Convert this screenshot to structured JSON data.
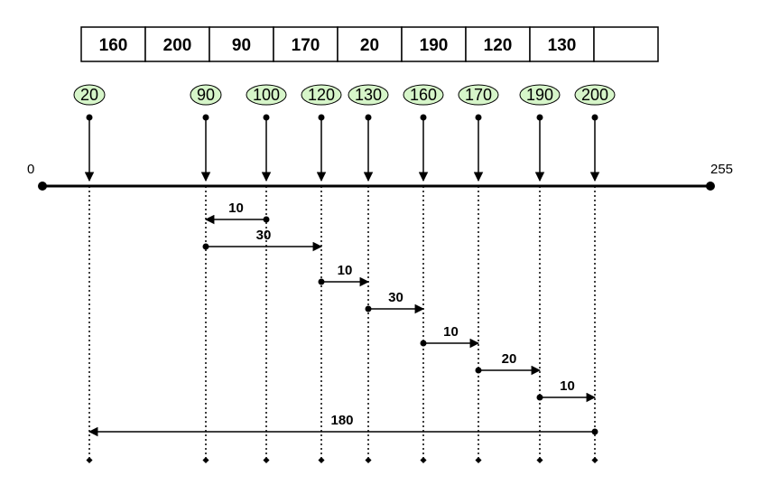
{
  "array_cells": [
    "160",
    "200",
    "90",
    "170",
    "20",
    "190",
    "120",
    "130",
    ""
  ],
  "sorted_values": [
    "20",
    "90",
    "100",
    "120",
    "130",
    "160",
    "170",
    "190",
    "200"
  ],
  "number_line": {
    "min_label": "0",
    "max_label": "255"
  },
  "distances": [
    {
      "from": "100",
      "to": "90",
      "label": "10"
    },
    {
      "from": "90",
      "to": "120",
      "label": "30"
    },
    {
      "from": "120",
      "to": "130",
      "label": "10"
    },
    {
      "from": "130",
      "to": "160",
      "label": "30"
    },
    {
      "from": "160",
      "to": "170",
      "label": "10"
    },
    {
      "from": "170",
      "to": "190",
      "label": "20"
    },
    {
      "from": "190",
      "to": "200",
      "label": "10"
    },
    {
      "from": "200",
      "to": "20",
      "label": "180"
    }
  ],
  "colors": {
    "oval_fill": "#d6f5c9",
    "stroke": "#000000",
    "background": "#ffffff"
  }
}
